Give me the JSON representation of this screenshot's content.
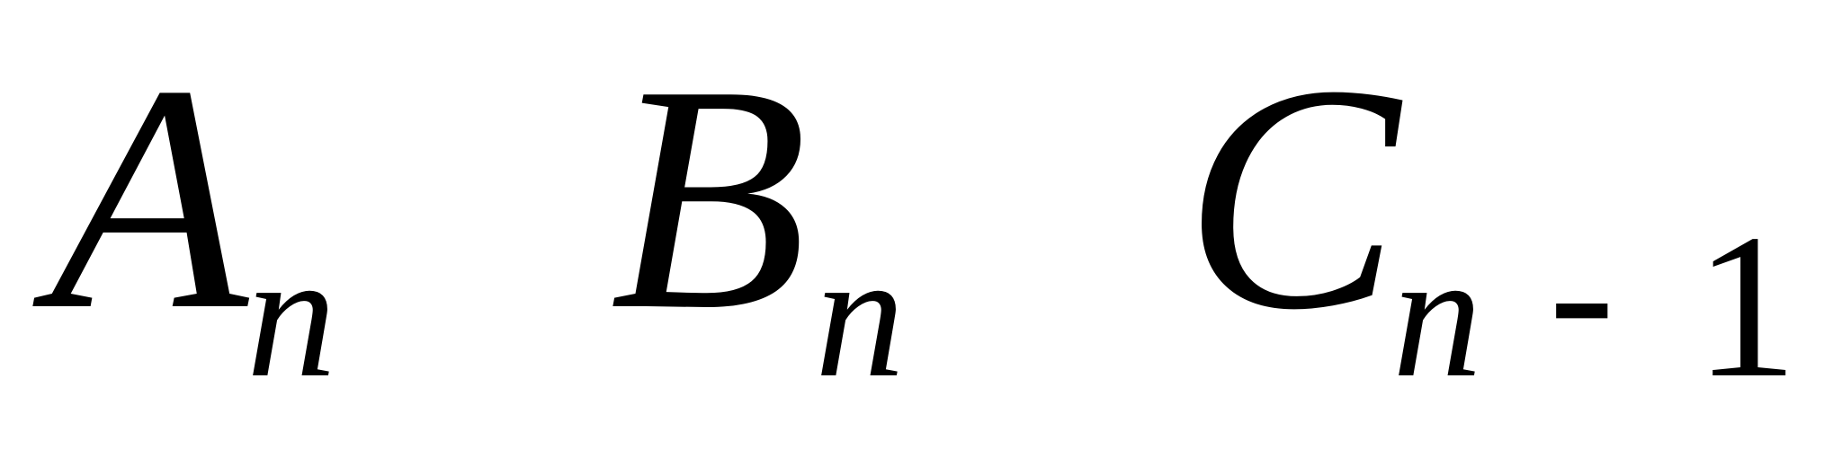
{
  "formula": {
    "terms": [
      {
        "symbol": "A",
        "subscript": "n"
      },
      {
        "symbol": "B",
        "subscript": "n"
      },
      {
        "symbol": "C",
        "subscript": "n"
      }
    ],
    "minus": "-",
    "offset": "1"
  }
}
